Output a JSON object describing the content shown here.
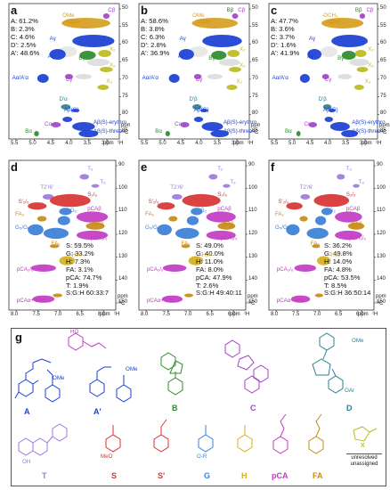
{
  "panels": [
    {
      "letter": "a",
      "stats": [
        "A: 61.2%",
        "B: 2.3%",
        "C: 4.6%",
        "D': 2.5%",
        "A': 48.6%"
      ],
      "ylabels": [
        "50",
        "55",
        "60",
        "65",
        "70",
        "75",
        "80",
        "85"
      ],
      "xlabels": [
        "5.5",
        "5.0",
        "4.5",
        "4.0",
        "3.5",
        "3.0"
      ]
    },
    {
      "letter": "b",
      "stats": [
        "A: 58.6%",
        "B: 3.8%",
        "C: 6.3%",
        "D': 2.8%",
        "A': 36.9%"
      ],
      "ylabels": [
        "50",
        "55",
        "60",
        "65",
        "70",
        "75",
        "80",
        "85"
      ],
      "xlabels": [
        "5.5",
        "5.0",
        "4.5",
        "4.0",
        "3.5",
        "3.0"
      ]
    },
    {
      "letter": "c",
      "stats": [
        "A: 47.7%",
        "B: 3.6%",
        "C: 3.7%",
        "D': 1.6%",
        "A': 41.9%"
      ],
      "ylabels": [
        "50",
        "55",
        "60",
        "65",
        "70",
        "75",
        "80",
        "85"
      ],
      "xlabels": [
        "5.5",
        "5.0",
        "4.5",
        "4.0",
        "3.5",
        "3.0"
      ]
    },
    {
      "letter": "d",
      "stats": [
        "S: 59.5%",
        "G: 33.2%",
        "H: 7.3%",
        "FA: 3.1%",
        "pCA: 74.7%",
        "T: 1.9%",
        "S:G:H 60:33:7"
      ],
      "ylabels": [
        "90",
        "100",
        "110",
        "120",
        "130",
        "140",
        "150"
      ],
      "xlabels": [
        "8.0",
        "7.5",
        "7.0",
        "6.5",
        "6.0"
      ]
    },
    {
      "letter": "e",
      "stats": [
        "S: 49.0%",
        "G: 40.0%",
        "H: 11.0%",
        "FA: 8.0%",
        "pCA: 47.9%",
        "T: 2.6%",
        "S:G:H 49:40:11"
      ],
      "ylabels": [
        "90",
        "100",
        "110",
        "120",
        "130",
        "140",
        "150"
      ],
      "xlabels": [
        "8.0",
        "7.5",
        "7.0",
        "6.5",
        "6.0"
      ]
    },
    {
      "letter": "f",
      "stats": [
        "S: 36.2%",
        "G: 49.8%",
        "H: 14.0%",
        "FA: 4.8%",
        "pCA: 53.5%",
        "T: 8.5%",
        "S:G:H 36:50:14"
      ],
      "ylabels": [
        "90",
        "100",
        "110",
        "120",
        "130",
        "140",
        "150"
      ],
      "xlabels": [
        "8.0",
        "7.5",
        "7.0",
        "6.5",
        "6.0"
      ]
    }
  ],
  "units": {
    "ppm13c": "ppm",
    "c13": "¹³C",
    "ppm1h": "ppm",
    "h1": "¹H"
  },
  "top_labels": {
    "OMe": "OMe",
    "OCH3": "-OCH₃",
    "Cb": "Cβ",
    "Bb": "Bβ",
    "Aa": "Aγ",
    "Ag": "Aγ'",
    "Xg": "X₂",
    "Bg": "Bγ",
    "Cg": "Cγ",
    "X3": "X₃",
    "X5": "X₅",
    "AaAa": "Aα/A'α",
    "Db": "D'β",
    "ABG": "Aβ(G)",
    "ABS": "Aβ(S)-erythro",
    "ABSt": "Aβ(S)-threo",
    "Ca": "Cα",
    "Ba": "Bα",
    "ABGr": "Aβ(G)",
    "Dd": "D'α"
  },
  "arom_labels": {
    "T6": "T₆",
    "T8": "T₈",
    "T26": "T2'/6'",
    "S26": "S₂/₆",
    "Sp26": "S'₂/₆",
    "FA2": "FA₂",
    "pCAb": "pCAβ",
    "G2": "G₂",
    "FAb": "FAβ",
    "G5G6": "G₅/G₆",
    "pCA35": "pCA₃/₅",
    "FA6": "FA₆",
    "H26": "H₂/₆",
    "pCA26": "pCA₂/₆",
    "pCAa": "pCAα+ FAα"
  },
  "structures": {
    "A": "A",
    "Ap": "A'",
    "B": "B",
    "C": "C",
    "D": "D",
    "T": "T",
    "S": "S",
    "Sp": "S'",
    "G": "G",
    "H": "H",
    "pCA": "pCA",
    "FA": "FA",
    "X": "X",
    "unres": "unresolved\nunassigned",
    "g": "g",
    "OMe": "OMe",
    "OAr": "OAr",
    "HO": "HO",
    "OR": "O-R",
    "MeO": "MeO",
    "OH": "OH"
  },
  "colors": {
    "A": "#1a3fd4",
    "B": "#2e8b2e",
    "C": "#a243c8",
    "D": "#2f7f93",
    "OMe": "#d6a020",
    "S": "#d83232",
    "G": "#3b7fd6",
    "H": "#d4b020",
    "pCA": "#c23cc2",
    "FA": "#c88a14",
    "X": "#bbbb20",
    "T": "#9d7bd6"
  }
}
